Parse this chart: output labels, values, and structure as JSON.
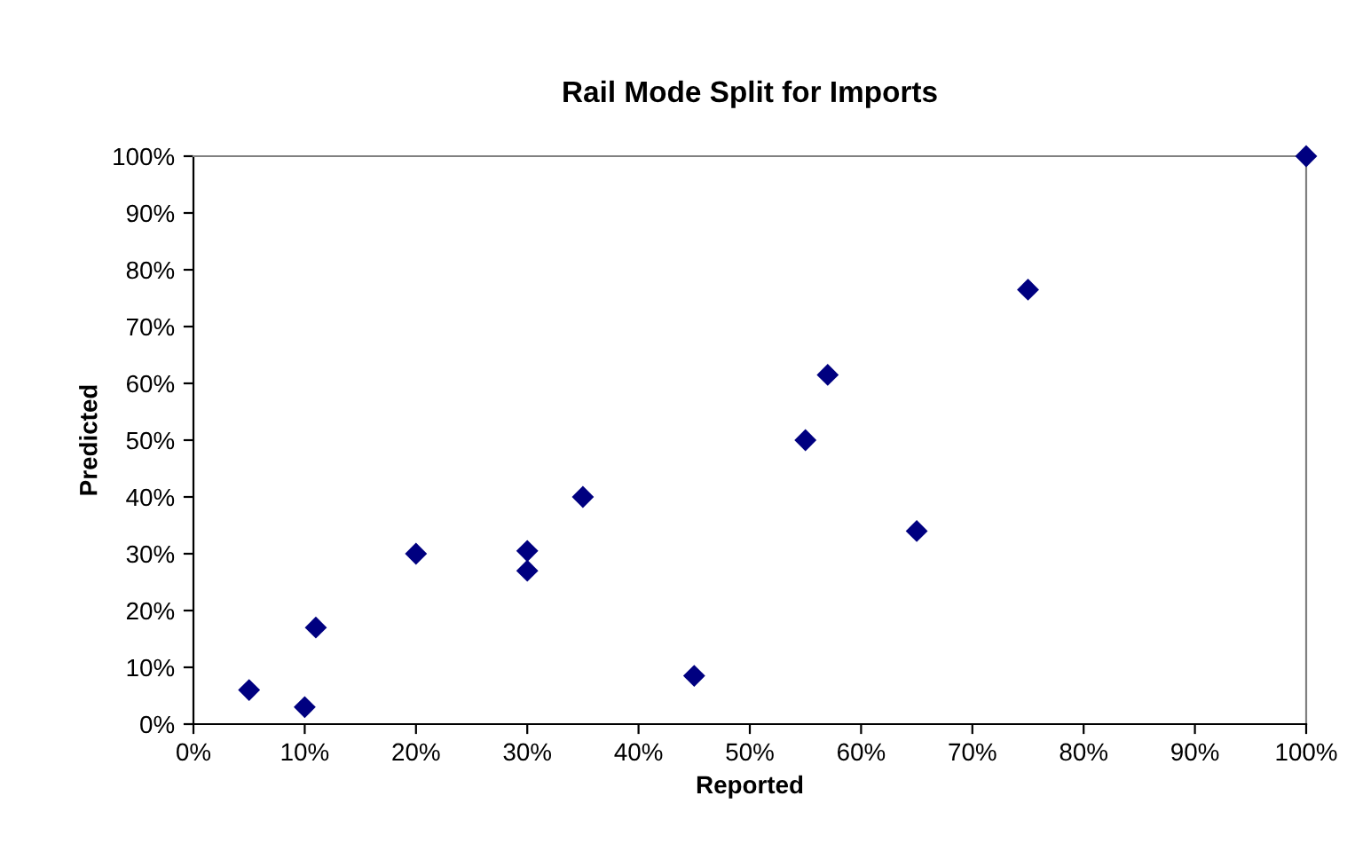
{
  "chart_data": {
    "type": "scatter",
    "title": "Rail Mode Split for Imports",
    "xlabel": "Reported",
    "ylabel": "Predicted",
    "x": [
      5,
      10,
      11,
      20,
      30,
      30,
      35,
      45,
      55,
      57,
      65,
      75,
      100
    ],
    "series": [
      {
        "color": "#000080",
        "values": [
          6,
          3,
          17,
          30,
          30.5,
          27,
          40,
          8.5,
          50,
          61.5,
          34,
          76.5,
          100
        ]
      }
    ],
    "xlim": [
      0,
      100
    ],
    "ylim": [
      0,
      100
    ],
    "xticks": [
      {
        "value": 0,
        "label": "0%"
      },
      {
        "value": 10,
        "label": "10%"
      },
      {
        "value": 20,
        "label": "20%"
      },
      {
        "value": 30,
        "label": "30%"
      },
      {
        "value": 40,
        "label": "40%"
      },
      {
        "value": 50,
        "label": "50%"
      },
      {
        "value": 60,
        "label": "60%"
      },
      {
        "value": 70,
        "label": "70%"
      },
      {
        "value": 80,
        "label": "80%"
      },
      {
        "value": 90,
        "label": "90%"
      },
      {
        "value": 100,
        "label": "100%"
      }
    ],
    "yticks": [
      {
        "value": 0,
        "label": "0%"
      },
      {
        "value": 10,
        "label": "10%"
      },
      {
        "value": 20,
        "label": "20%"
      },
      {
        "value": 30,
        "label": "30%"
      },
      {
        "value": 40,
        "label": "40%"
      },
      {
        "value": 50,
        "label": "50%"
      },
      {
        "value": 60,
        "label": "60%"
      },
      {
        "value": 70,
        "label": "70%"
      },
      {
        "value": 80,
        "label": "80%"
      },
      {
        "value": 90,
        "label": "90%"
      },
      {
        "value": 100,
        "label": "100%"
      }
    ],
    "marker": "diamond",
    "grid": false,
    "legend": false
  }
}
